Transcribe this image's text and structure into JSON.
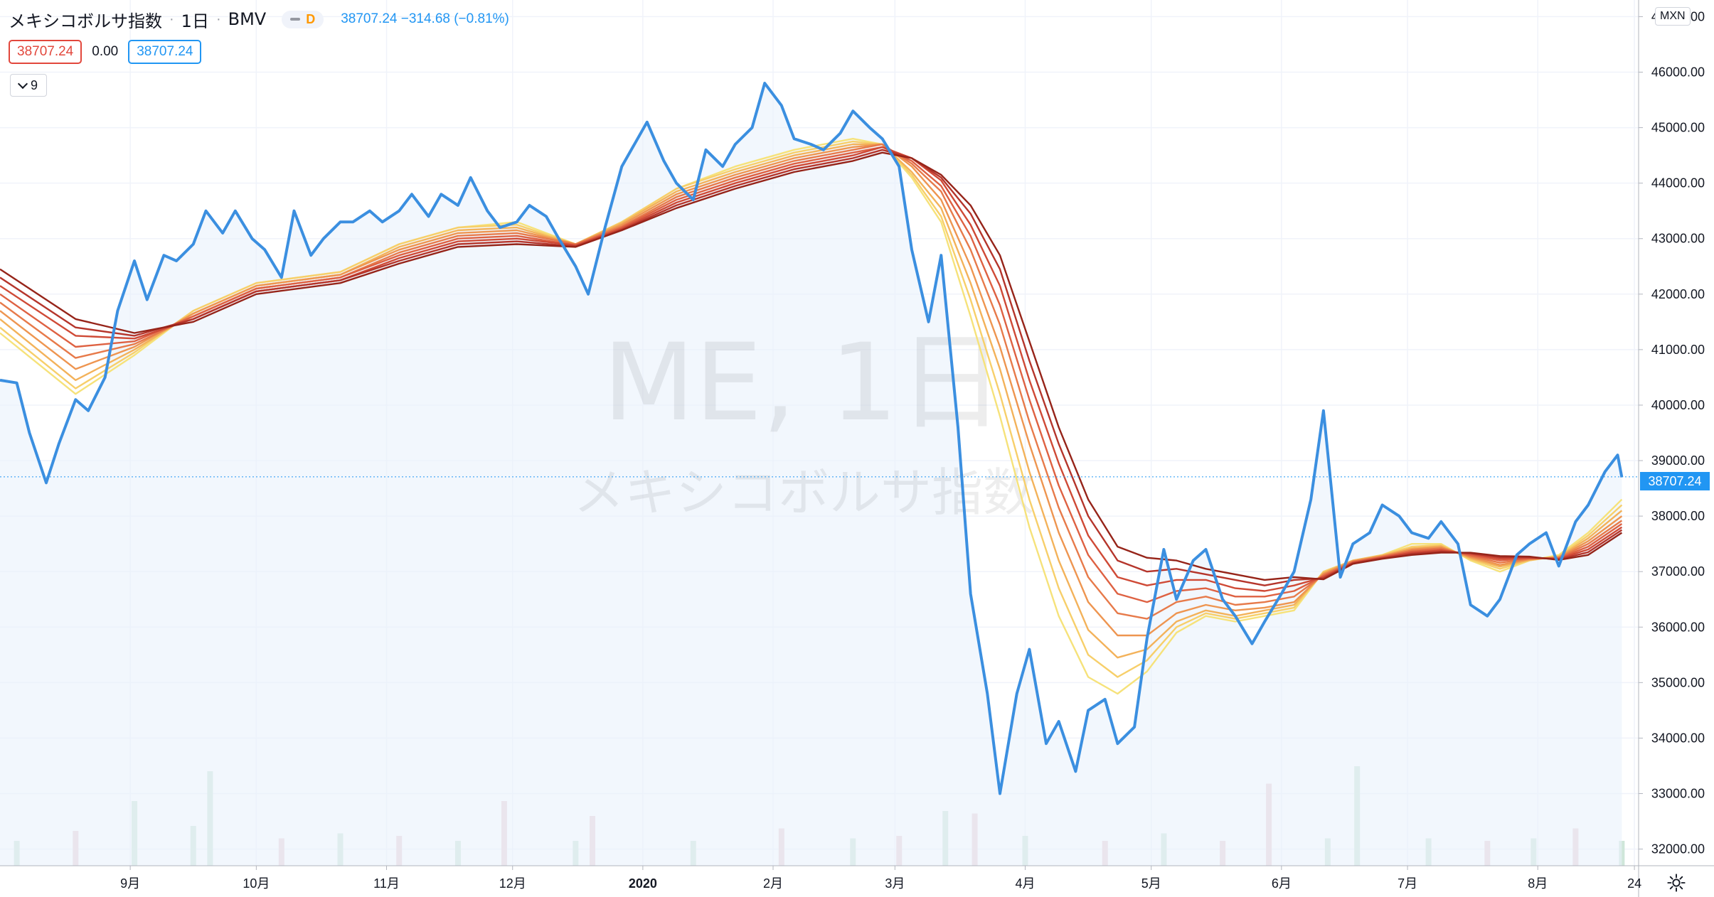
{
  "header": {
    "title": "メキシコボルサ指数",
    "interval": "1日",
    "exchange": "BMV",
    "indicator_flag": "D",
    "quote": "38707.24  −314.68 (−0.81%)"
  },
  "values_row": {
    "bid": "38707.24",
    "spread": "0.00",
    "ask": "38707.24"
  },
  "collapse_button": {
    "count": "9"
  },
  "currency": "MXN",
  "last_price_label": "38707.24",
  "watermark": {
    "symbol": "ME, 1日",
    "name": "メキシコボルサ指数"
  },
  "colors": {
    "price_line": "#3b8fe0",
    "area_fill": "#eaf2fb",
    "volume_up": "#cfe6d9",
    "volume_down": "#ead1d8",
    "ribbon": [
      "#f6e27a",
      "#f7cf6a",
      "#f3b25a",
      "#ee9550",
      "#e77a4a",
      "#de6142",
      "#cf4a36",
      "#b5352b",
      "#962419"
    ]
  },
  "chart_data": {
    "type": "line",
    "title": "",
    "ylim": [
      31700,
      47300
    ],
    "yticks": [
      47000,
      46000,
      45000,
      44000,
      43000,
      42000,
      41000,
      40000,
      39000,
      38000,
      37000,
      36000,
      35000,
      34000,
      33000,
      32000
    ],
    "x_range": [
      "2019-08-01",
      "2020-08-25"
    ],
    "x_tick_labels": [
      {
        "date": "2019-09-01",
        "label": "9月"
      },
      {
        "date": "2019-10-01",
        "label": "10月"
      },
      {
        "date": "2019-11-01",
        "label": "11月"
      },
      {
        "date": "2019-12-01",
        "label": "12月"
      },
      {
        "date": "2020-01-01",
        "label": "2020"
      },
      {
        "date": "2020-02-01",
        "label": "2月"
      },
      {
        "date": "2020-03-01",
        "label": "3月"
      },
      {
        "date": "2020-04-01",
        "label": "4月"
      },
      {
        "date": "2020-05-01",
        "label": "5月"
      },
      {
        "date": "2020-06-01",
        "label": "6月"
      },
      {
        "date": "2020-07-01",
        "label": "7月"
      },
      {
        "date": "2020-08-01",
        "label": "8月"
      },
      {
        "date": "2020-08-24",
        "label": "24"
      }
    ],
    "price": {
      "x": [
        "2019-08-01",
        "2019-08-05",
        "2019-08-08",
        "2019-08-12",
        "2019-08-15",
        "2019-08-19",
        "2019-08-22",
        "2019-08-26",
        "2019-08-29",
        "2019-09-02",
        "2019-09-05",
        "2019-09-09",
        "2019-09-12",
        "2019-09-16",
        "2019-09-19",
        "2019-09-23",
        "2019-09-26",
        "2019-09-30",
        "2019-10-03",
        "2019-10-07",
        "2019-10-10",
        "2019-10-14",
        "2019-10-17",
        "2019-10-21",
        "2019-10-24",
        "2019-10-28",
        "2019-10-31",
        "2019-11-04",
        "2019-11-07",
        "2019-11-11",
        "2019-11-14",
        "2019-11-18",
        "2019-11-21",
        "2019-11-25",
        "2019-11-28",
        "2019-12-02",
        "2019-12-05",
        "2019-12-09",
        "2019-12-12",
        "2019-12-16",
        "2019-12-19",
        "2019-12-23",
        "2019-12-27",
        "2020-01-02",
        "2020-01-06",
        "2020-01-09",
        "2020-01-13",
        "2020-01-16",
        "2020-01-20",
        "2020-01-23",
        "2020-01-27",
        "2020-01-30",
        "2020-02-03",
        "2020-02-06",
        "2020-02-10",
        "2020-02-13",
        "2020-02-17",
        "2020-02-20",
        "2020-02-24",
        "2020-02-27",
        "2020-03-02",
        "2020-03-05",
        "2020-03-09",
        "2020-03-12",
        "2020-03-16",
        "2020-03-19",
        "2020-03-23",
        "2020-03-26",
        "2020-03-30",
        "2020-04-02",
        "2020-04-06",
        "2020-04-09",
        "2020-04-13",
        "2020-04-16",
        "2020-04-20",
        "2020-04-23",
        "2020-04-27",
        "2020-04-30",
        "2020-05-04",
        "2020-05-07",
        "2020-05-11",
        "2020-05-14",
        "2020-05-18",
        "2020-05-21",
        "2020-05-25",
        "2020-05-28",
        "2020-06-01",
        "2020-06-04",
        "2020-06-08",
        "2020-06-11",
        "2020-06-15",
        "2020-06-18",
        "2020-06-22",
        "2020-06-25",
        "2020-06-29",
        "2020-07-02",
        "2020-07-06",
        "2020-07-09",
        "2020-07-13",
        "2020-07-16",
        "2020-07-20",
        "2020-07-23",
        "2020-07-27",
        "2020-07-30",
        "2020-08-03",
        "2020-08-06",
        "2020-08-10",
        "2020-08-13",
        "2020-08-17",
        "2020-08-20",
        "2020-08-21"
      ],
      "values": [
        40450,
        40400,
        39500,
        38600,
        39300,
        40100,
        39900,
        40500,
        41700,
        42600,
        41900,
        42700,
        42600,
        42900,
        43500,
        43100,
        43500,
        43000,
        42800,
        42300,
        43500,
        42700,
        43000,
        43300,
        43300,
        43500,
        43300,
        43500,
        43800,
        43400,
        43800,
        43600,
        44100,
        43500,
        43200,
        43300,
        43600,
        43400,
        43000,
        42500,
        42000,
        43200,
        44300,
        45100,
        44400,
        44000,
        43700,
        44600,
        44300,
        44700,
        45000,
        45800,
        45400,
        44800,
        44700,
        44600,
        44900,
        45300,
        45000,
        44800,
        44300,
        42800,
        41500,
        42700,
        39600,
        36600,
        34800,
        33000,
        34800,
        35600,
        33900,
        34300,
        33400,
        34500,
        34700,
        33900,
        34200,
        35800,
        37400,
        36500,
        37200,
        37400,
        36500,
        36200,
        35700,
        36100,
        36600,
        37000,
        38300,
        39900,
        36900,
        37500,
        37700,
        38200,
        38000,
        37700,
        37600,
        37900,
        37500,
        36400,
        36200,
        36500,
        37300,
        37500,
        37700,
        37100,
        37900,
        38200,
        38800,
        39100,
        38700
      ]
    },
    "ribbon": {
      "x": [
        "2019-08-01",
        "2019-08-19",
        "2019-09-02",
        "2019-09-16",
        "2019-10-01",
        "2019-10-21",
        "2019-11-04",
        "2019-11-18",
        "2019-12-02",
        "2019-12-16",
        "2019-12-27",
        "2020-01-09",
        "2020-01-23",
        "2020-02-06",
        "2020-02-20",
        "2020-02-27",
        "2020-03-05",
        "2020-03-12",
        "2020-03-19",
        "2020-03-26",
        "2020-04-02",
        "2020-04-09",
        "2020-04-16",
        "2020-04-23",
        "2020-04-30",
        "2020-05-07",
        "2020-05-14",
        "2020-05-21",
        "2020-05-28",
        "2020-06-04",
        "2020-06-11",
        "2020-06-18",
        "2020-06-25",
        "2020-07-02",
        "2020-07-09",
        "2020-07-16",
        "2020-07-23",
        "2020-07-30",
        "2020-08-06",
        "2020-08-13",
        "2020-08-21"
      ],
      "series": [
        {
          "values": [
            41300,
            40200,
            40900,
            41700,
            42200,
            42400,
            42900,
            43200,
            43300,
            42900,
            43300,
            43900,
            44300,
            44600,
            44800,
            44700,
            44100,
            43300,
            41600,
            39800,
            37800,
            36200,
            35100,
            34800,
            35200,
            35900,
            36200,
            36100,
            36200,
            36300,
            37000,
            37200,
            37300,
            37500,
            37500,
            37200,
            37000,
            37200,
            37300,
            37700,
            38300
          ]
        },
        {
          "values": [
            41400,
            40300,
            40950,
            41700,
            42200,
            42400,
            42900,
            43200,
            43250,
            42900,
            43300,
            43900,
            44250,
            44550,
            44750,
            44700,
            44150,
            43400,
            41900,
            40200,
            38300,
            36700,
            35500,
            35100,
            35400,
            36000,
            36250,
            36150,
            36250,
            36350,
            37000,
            37200,
            37300,
            37450,
            37480,
            37220,
            37050,
            37200,
            37280,
            37650,
            38200
          ]
        },
        {
          "values": [
            41550,
            40450,
            41000,
            41650,
            42150,
            42350,
            42850,
            43150,
            43200,
            42900,
            43280,
            43850,
            44200,
            44500,
            44700,
            44700,
            44200,
            43550,
            42200,
            40650,
            38800,
            37200,
            35950,
            35450,
            35600,
            36100,
            36300,
            36200,
            36300,
            36400,
            36980,
            37200,
            37290,
            37420,
            37460,
            37240,
            37090,
            37210,
            37270,
            37600,
            38100
          ]
        },
        {
          "values": [
            41700,
            40650,
            41050,
            41650,
            42150,
            42350,
            42800,
            43100,
            43150,
            42900,
            43250,
            43800,
            44150,
            44450,
            44650,
            44700,
            44300,
            43700,
            42500,
            41050,
            39300,
            37700,
            36450,
            35850,
            35850,
            36250,
            36400,
            36300,
            36350,
            36450,
            36960,
            37190,
            37280,
            37400,
            37440,
            37260,
            37120,
            37220,
            37260,
            37550,
            38000
          ]
        },
        {
          "values": [
            41850,
            40850,
            41100,
            41600,
            42100,
            42300,
            42750,
            43050,
            43100,
            42900,
            43220,
            43750,
            44100,
            44400,
            44600,
            44700,
            44350,
            43850,
            42800,
            41450,
            39700,
            38150,
            36900,
            36250,
            36150,
            36450,
            36550,
            36400,
            36450,
            36550,
            36940,
            37180,
            37270,
            37380,
            37420,
            37280,
            37160,
            37230,
            37250,
            37500,
            37920
          ]
        },
        {
          "values": [
            42000,
            41050,
            41150,
            41600,
            42100,
            42300,
            42700,
            43000,
            43050,
            42880,
            43200,
            43700,
            44050,
            44350,
            44550,
            44650,
            44400,
            43950,
            43050,
            41800,
            40100,
            38550,
            37300,
            36600,
            36450,
            36650,
            36700,
            36550,
            36550,
            36650,
            36920,
            37170,
            37260,
            37360,
            37400,
            37300,
            37200,
            37240,
            37240,
            37450,
            37860
          ]
        },
        {
          "values": [
            42150,
            41250,
            41200,
            41550,
            42050,
            42250,
            42650,
            42950,
            43000,
            42880,
            43180,
            43650,
            44000,
            44300,
            44500,
            44650,
            44450,
            44050,
            43250,
            42150,
            40450,
            38950,
            37650,
            36900,
            36750,
            36850,
            36850,
            36700,
            36650,
            36750,
            36900,
            37160,
            37250,
            37340,
            37380,
            37320,
            37230,
            37250,
            37230,
            37400,
            37800
          ]
        },
        {
          "values": [
            42300,
            41400,
            41250,
            41550,
            42050,
            42250,
            42600,
            42900,
            42950,
            42860,
            43160,
            43600,
            43950,
            44250,
            44450,
            44600,
            44450,
            44100,
            43450,
            42450,
            40800,
            39300,
            38000,
            37200,
            37000,
            37050,
            36950,
            36850,
            36750,
            36850,
            36880,
            37150,
            37240,
            37320,
            37360,
            37330,
            37260,
            37260,
            37220,
            37350,
            37750
          ]
        },
        {
          "values": [
            42450,
            41550,
            41300,
            41500,
            42000,
            42200,
            42550,
            42850,
            42900,
            42850,
            43150,
            43550,
            43900,
            44200,
            44400,
            44550,
            44450,
            44150,
            43600,
            42700,
            41150,
            39600,
            38300,
            37450,
            37250,
            37200,
            37050,
            36950,
            36850,
            36900,
            36860,
            37140,
            37230,
            37300,
            37340,
            37340,
            37280,
            37270,
            37210,
            37300,
            37700
          ]
        }
      ]
    },
    "volume": {
      "x": [
        "2019-08-05",
        "2019-08-19",
        "2019-09-02",
        "2019-09-16",
        "2019-09-20",
        "2019-10-07",
        "2019-10-21",
        "2019-11-04",
        "2019-11-18",
        "2019-11-29",
        "2019-12-16",
        "2019-12-20",
        "2020-01-13",
        "2020-02-03",
        "2020-02-20",
        "2020-03-02",
        "2020-03-13",
        "2020-03-20",
        "2020-04-01",
        "2020-04-20",
        "2020-05-04",
        "2020-05-18",
        "2020-05-29",
        "2020-06-12",
        "2020-06-19",
        "2020-07-06",
        "2020-07-20",
        "2020-07-31",
        "2020-08-10",
        "2020-08-21"
      ],
      "values": [
        1.0,
        1.4,
        2.6,
        1.6,
        3.8,
        1.1,
        1.3,
        1.2,
        1.0,
        2.6,
        1.0,
        2.0,
        1.0,
        1.5,
        1.1,
        1.2,
        2.2,
        2.1,
        1.2,
        1.0,
        1.3,
        1.0,
        3.3,
        1.1,
        4.0,
        1.1,
        1.0,
        1.1,
        1.5,
        1.0
      ],
      "direction": [
        "up",
        "down",
        "up",
        "up",
        "up",
        "down",
        "up",
        "down",
        "up",
        "down",
        "up",
        "down",
        "up",
        "down",
        "up",
        "down",
        "up",
        "down",
        "up",
        "down",
        "up",
        "down",
        "down",
        "up",
        "up",
        "up",
        "down",
        "up",
        "down",
        "up"
      ]
    }
  }
}
